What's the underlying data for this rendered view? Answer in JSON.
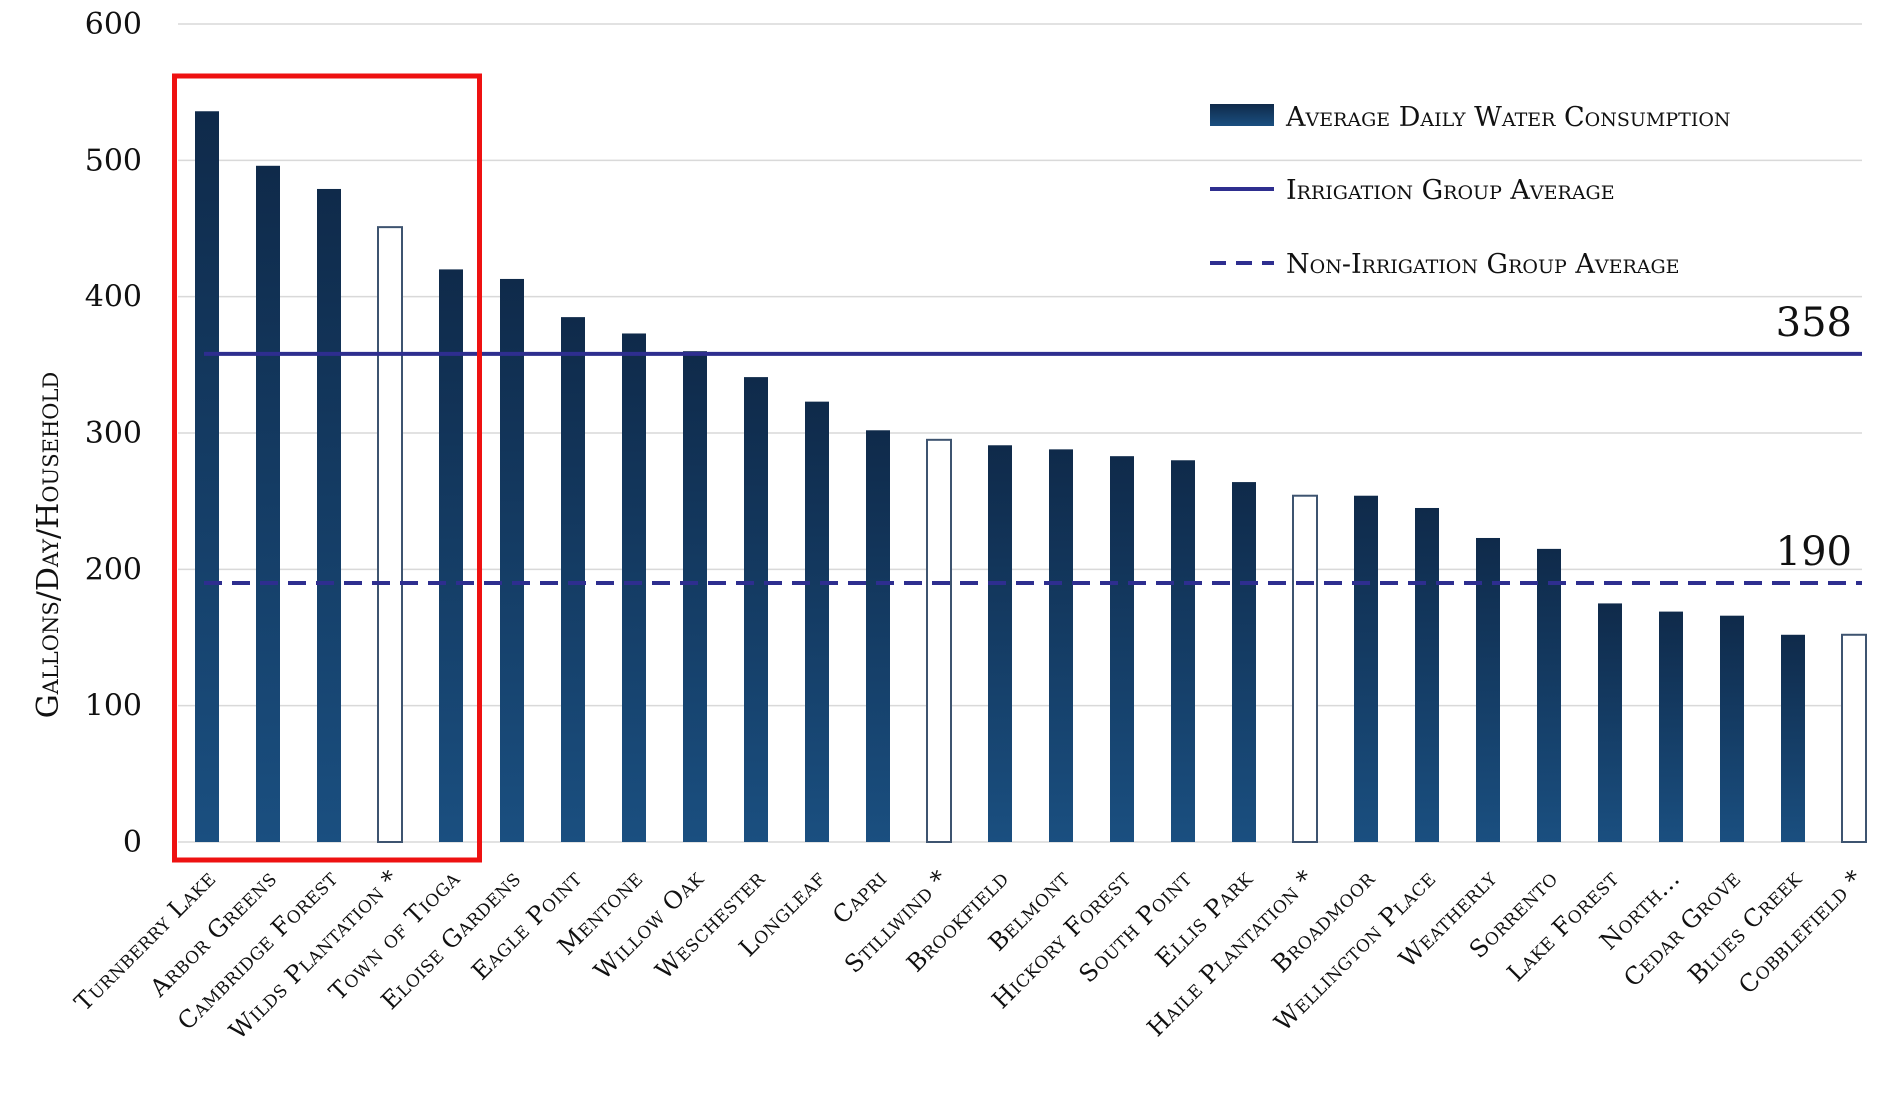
{
  "chart_data": {
    "type": "bar",
    "ylabel": "Gallons/Day/Household",
    "ylim": [
      0,
      600
    ],
    "yticks": [
      0,
      100,
      200,
      300,
      400,
      500,
      600
    ],
    "grid": true,
    "legend_position": "top-right",
    "categories": [
      "Turnberry Lake",
      "Arbor Greens",
      "Cambridge Forest",
      "Wilds Plantation *",
      "Town of Tioga",
      "Eloise Gardens",
      "Eagle Point",
      "Mentone",
      "Willow Oak",
      "Weschester",
      "Longleaf",
      "Capri",
      "Stillwind *",
      "Brookfield",
      "Belmont",
      "Hickory Forest",
      "South Point",
      "Ellis Park",
      "Haile Plantation *",
      "Broadmoor",
      "Wellington Place",
      "Weatherly",
      "Sorrento",
      "Lake Forest",
      "North...",
      "Cedar Grove",
      "Blues Creek",
      "Cobblefield *"
    ],
    "series": [
      {
        "name": "Average Daily Water Consumption",
        "values": [
          536,
          496,
          479,
          451,
          420,
          413,
          385,
          373,
          360,
          341,
          323,
          302,
          295,
          291,
          288,
          283,
          280,
          264,
          254,
          254,
          245,
          223,
          215,
          175,
          169,
          166,
          152,
          152
        ],
        "hollow": [
          false,
          false,
          false,
          true,
          false,
          false,
          false,
          false,
          false,
          false,
          false,
          false,
          true,
          false,
          false,
          false,
          false,
          false,
          true,
          false,
          false,
          false,
          false,
          false,
          false,
          false,
          false,
          true
        ]
      }
    ],
    "reference_lines": [
      {
        "name": "Irrigation Group Average",
        "value": 358,
        "label": "358",
        "style": "solid",
        "color": "#2e2e8f"
      },
      {
        "name": "Non-Irrigation Group Average",
        "value": 190,
        "label": "190",
        "style": "dashed",
        "color": "#2e2e8f"
      }
    ],
    "highlight_box": {
      "from_index": 0,
      "to_index": 4,
      "color": "#ee1111"
    },
    "colors": {
      "bar_top": "#0f2a4a",
      "bar_bottom": "#1a4f80",
      "hollow_stroke": "#3e5470",
      "grid": "#d9d9d9",
      "highlight": "#ee1111"
    }
  }
}
